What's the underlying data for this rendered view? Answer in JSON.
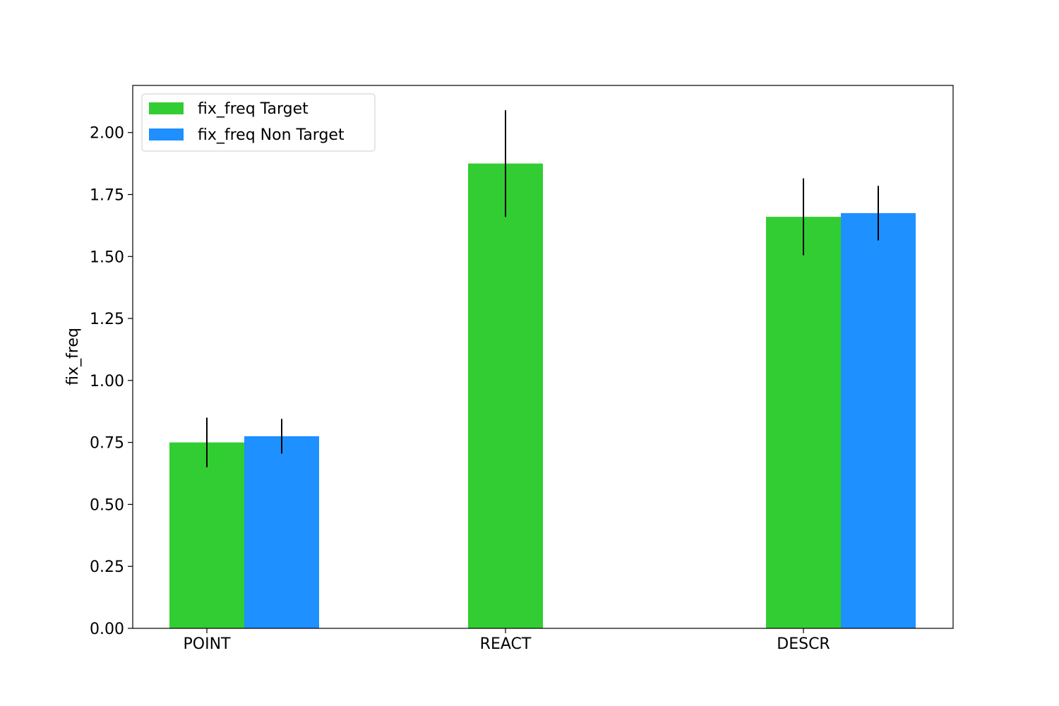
{
  "chart_data": {
    "type": "bar",
    "title": "",
    "xlabel": "",
    "ylabel": "fix_freq",
    "categories": [
      "POINT",
      "REACT",
      "DESCR"
    ],
    "ylim": [
      0,
      2.19
    ],
    "yticks": [
      "0.00",
      "0.25",
      "0.50",
      "0.75",
      "1.00",
      "1.25",
      "1.50",
      "1.75",
      "2.00"
    ],
    "grid": false,
    "legend_position": "top-left",
    "series": [
      {
        "name": "fix_freq Target",
        "color": "#32cd32",
        "values": [
          0.75,
          1.875,
          1.66
        ],
        "errors": [
          0.1,
          0.215,
          0.155
        ]
      },
      {
        "name": "fix_freq Non Target",
        "color": "#1e90ff",
        "values": [
          0.775,
          null,
          1.675
        ],
        "errors": [
          0.07,
          null,
          0.11
        ]
      }
    ]
  }
}
